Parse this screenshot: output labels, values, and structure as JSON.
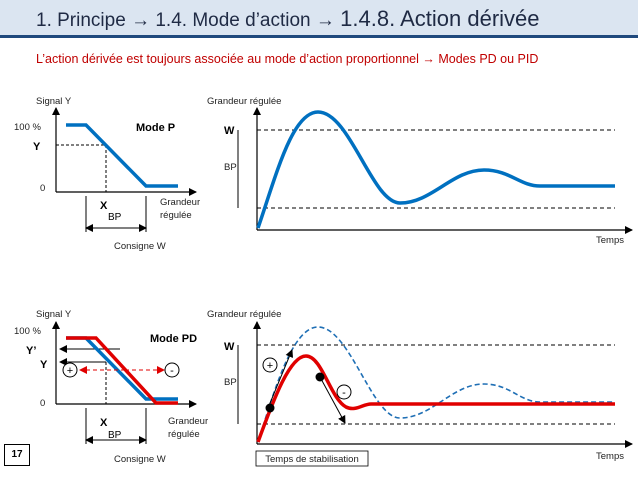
{
  "title": {
    "prefix": "1. Principe",
    "middle": "1.4. Mode d’action",
    "main": "1.4.8. Action dérivée",
    "arrow": "→"
  },
  "subtitle": "L’action dérivée est toujours associée au mode d’action proportionnel → Modes PD ou PID",
  "page_number": "17",
  "top": {
    "left": {
      "signal_label": "Signal Y",
      "pct_label": "100 %",
      "zero_label": "0",
      "y_label": "Y",
      "x_label": "X",
      "bp_label": "BP",
      "mode_label": "Mode P",
      "grandeur_line1": "Grandeur",
      "grandeur_line2": "régulée",
      "consigne_label": "Consigne W"
    },
    "right": {
      "axis_label": "Grandeur régulée",
      "w_label": "W",
      "bp_label": "BP",
      "time_label": "Temps"
    }
  },
  "bottom": {
    "left": {
      "signal_label": "Signal Y",
      "pct_label": "100 %",
      "zero_label": "0",
      "y_label": "Y",
      "y_prime_label": "Y’",
      "x_label": "X",
      "bp_label": "BP",
      "mode_label": "Mode PD",
      "plus_label": "+",
      "minus_label": "-",
      "grandeur_line1": "Grandeur",
      "grandeur_line2": "régulée",
      "consigne_label": "Consigne W"
    },
    "right": {
      "axis_label": "Grandeur régulée",
      "w_label": "W",
      "bp_label": "BP",
      "plus_label": "+",
      "minus_label": "-",
      "stabilisation_label": "Temps de stabilisation",
      "time_label": "Temps"
    }
  },
  "colors": {
    "blue": "#0070c0",
    "red": "#e00000",
    "title_border": "#1f497d",
    "title_bg": "#dbe5f1"
  }
}
